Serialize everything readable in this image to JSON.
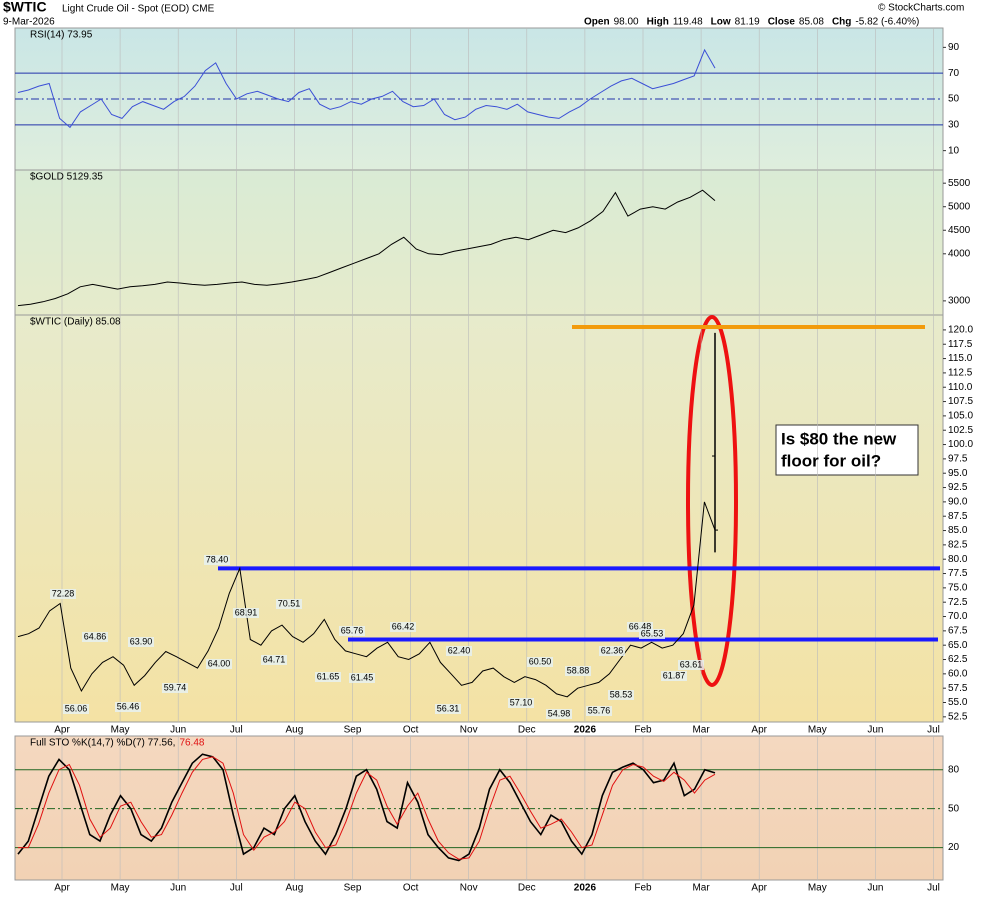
{
  "header": {
    "symbol": "$WTIC",
    "name": "Light Crude Oil - Spot (EOD) CME",
    "date": "9-Mar-2026",
    "open_label": "Open",
    "open": 98.0,
    "high_label": "High",
    "high": 119.48,
    "low_label": "Low",
    "low": 81.19,
    "close_label": "Close",
    "close": 85.08,
    "chg_label": "Chg",
    "chg": "-5.82 (-6.40%)",
    "credit": "© StockCharts.com"
  },
  "chart_data": [
    {
      "type": "line",
      "panel": "rsi",
      "label": "RSI(14) 73.95",
      "ylim": [
        -5,
        105
      ],
      "yticks": [
        10,
        30,
        50,
        70,
        90
      ],
      "color": "#3b4fd6",
      "values": [
        55,
        57,
        60,
        62,
        35,
        28,
        40,
        45,
        50,
        38,
        35,
        44,
        48,
        45,
        42,
        48,
        52,
        60,
        72,
        78,
        62,
        50,
        54,
        56,
        53,
        50,
        48,
        55,
        58,
        46,
        42,
        44,
        48,
        46,
        50,
        52,
        56,
        48,
        44,
        45,
        50,
        38,
        34,
        36,
        42,
        45,
        44,
        42,
        46,
        40,
        38,
        36,
        35,
        40,
        44,
        50,
        55,
        60,
        64,
        66,
        62,
        58,
        60,
        62,
        65,
        68,
        88,
        73.95
      ]
    },
    {
      "type": "line",
      "panel": "gold",
      "label": "$GOLD 5129.35",
      "ylim": [
        2700,
        5780
      ],
      "yticks": [
        3000,
        4000,
        4500,
        5000,
        5500
      ],
      "color": "#000000",
      "values": [
        2900,
        2930,
        2980,
        3050,
        3150,
        3300,
        3350,
        3300,
        3250,
        3300,
        3320,
        3350,
        3400,
        3380,
        3350,
        3330,
        3350,
        3380,
        3400,
        3350,
        3330,
        3360,
        3400,
        3450,
        3500,
        3600,
        3700,
        3800,
        3900,
        4000,
        4200,
        4350,
        4100,
        4000,
        3980,
        4050,
        4100,
        4150,
        4200,
        4300,
        4350,
        4300,
        4400,
        4500,
        4450,
        4550,
        4700,
        4900,
        5300,
        4800,
        4950,
        5000,
        4950,
        5100,
        5200,
        5350,
        5129.35
      ]
    },
    {
      "type": "line",
      "panel": "price",
      "label": "$WTIC (Daily) 85.08",
      "ylim": [
        51.6,
        122.6
      ],
      "color": "#000000",
      "yticks": [
        52.5,
        {
          "value": 55,
          "label": "55.0"
        },
        57.5,
        {
          "value": 60,
          "label": "60.0"
        },
        62.5,
        {
          "value": 65,
          "label": "65.0"
        },
        67.5,
        {
          "value": 70,
          "label": "70.0"
        },
        72.5,
        {
          "value": 75,
          "label": "75.0"
        },
        77.5,
        {
          "value": 80,
          "label": "80.0"
        },
        82.5,
        {
          "value": 85,
          "label": "85.0"
        },
        87.5,
        {
          "value": 90,
          "label": "90.0"
        },
        92.5,
        {
          "value": 95,
          "label": "95.0"
        },
        97.5,
        {
          "value": 100,
          "label": "100.0"
        },
        102.5,
        {
          "value": 105,
          "label": "105.0"
        },
        107.5,
        {
          "value": 110,
          "label": "110.0"
        },
        112.5,
        {
          "value": 115,
          "label": "115.0"
        },
        117.5,
        {
          "value": 120,
          "label": "120.0"
        }
      ],
      "values": [
        66.5,
        67,
        68,
        71,
        72.28,
        61,
        57,
        60,
        62,
        63,
        61.5,
        58,
        59.7,
        62,
        63.9,
        63,
        62,
        61,
        64,
        68,
        74,
        78.4,
        66,
        65,
        67.5,
        68.5,
        66.5,
        65.5,
        67,
        69.5,
        66,
        64,
        63.5,
        63,
        64.5,
        65.5,
        63,
        62.5,
        63.5,
        65.5,
        62,
        60,
        58,
        58.5,
        60.5,
        61,
        59.5,
        58.5,
        59.5,
        59,
        58,
        56.5,
        56,
        57.5,
        58,
        58.5,
        60,
        62.5,
        65,
        64.5,
        65.5,
        64.5,
        65,
        67,
        72,
        90,
        85.08
      ],
      "levels": [
        {
          "value": 78.4,
          "color": "#1a1aff"
        },
        {
          "value": 66,
          "color": "#1a1aff"
        },
        {
          "value": 120.5,
          "color": "#f29b0c"
        }
      ],
      "annotations": [
        "72.28",
        "64.86",
        "63.90",
        "56.06",
        "56.46",
        "59.74",
        "78.40",
        "68.91",
        "70.51",
        "64.00",
        "64.71",
        "65.76",
        "66.42",
        "61.65",
        "61.45",
        "62.40",
        "56.31",
        "60.50",
        "57.10",
        "58.88",
        "54.98",
        "55.76",
        "62.36",
        "58.53",
        "66.48",
        "65.53",
        "61.87",
        "63.61"
      ],
      "callout": [
        "Is $80 the new",
        "floor for oil?"
      ]
    },
    {
      "type": "line",
      "panel": "sto",
      "label": "Full STO %K(14,7) %D(7) 77.56,",
      "label2": "76.48",
      "ylim": [
        -5,
        106
      ],
      "yticks": [
        20,
        50,
        80
      ],
      "series": [
        {
          "name": "%K",
          "color": "#000000",
          "values": [
            15,
            25,
            50,
            75,
            88,
            80,
            55,
            30,
            25,
            45,
            60,
            50,
            30,
            25,
            35,
            55,
            70,
            85,
            92,
            90,
            80,
            45,
            15,
            20,
            35,
            30,
            50,
            60,
            40,
            25,
            15,
            30,
            50,
            75,
            80,
            65,
            40,
            35,
            70,
            55,
            30,
            20,
            12,
            10,
            15,
            35,
            65,
            80,
            70,
            55,
            40,
            30,
            45,
            40,
            25,
            15,
            30,
            60,
            78,
            82,
            85,
            80,
            70,
            72,
            85,
            60,
            65,
            80,
            77.56
          ]
        },
        {
          "name": "%D",
          "color": "#e01010",
          "values": [
            20,
            20,
            38,
            62,
            80,
            84,
            68,
            42,
            28,
            35,
            52,
            55,
            40,
            28,
            30,
            45,
            62,
            78,
            88,
            90,
            85,
            62,
            30,
            18,
            28,
            32,
            40,
            55,
            50,
            32,
            20,
            22,
            40,
            62,
            78,
            72,
            52,
            38,
            52,
            62,
            42,
            25,
            16,
            11,
            12,
            25,
            50,
            72,
            75,
            62,
            48,
            35,
            38,
            42,
            32,
            20,
            22,
            45,
            68,
            80,
            84,
            82,
            75,
            71,
            78,
            72,
            62,
            72,
            76.48
          ]
        }
      ]
    }
  ],
  "months": [
    "Apr",
    "May",
    "Jun",
    "Jul",
    "Aug",
    "Sep",
    "Oct",
    "Nov",
    "Dec",
    "2026",
    "Feb",
    "Mar",
    "Apr",
    "May",
    "Jun",
    "Jul"
  ]
}
